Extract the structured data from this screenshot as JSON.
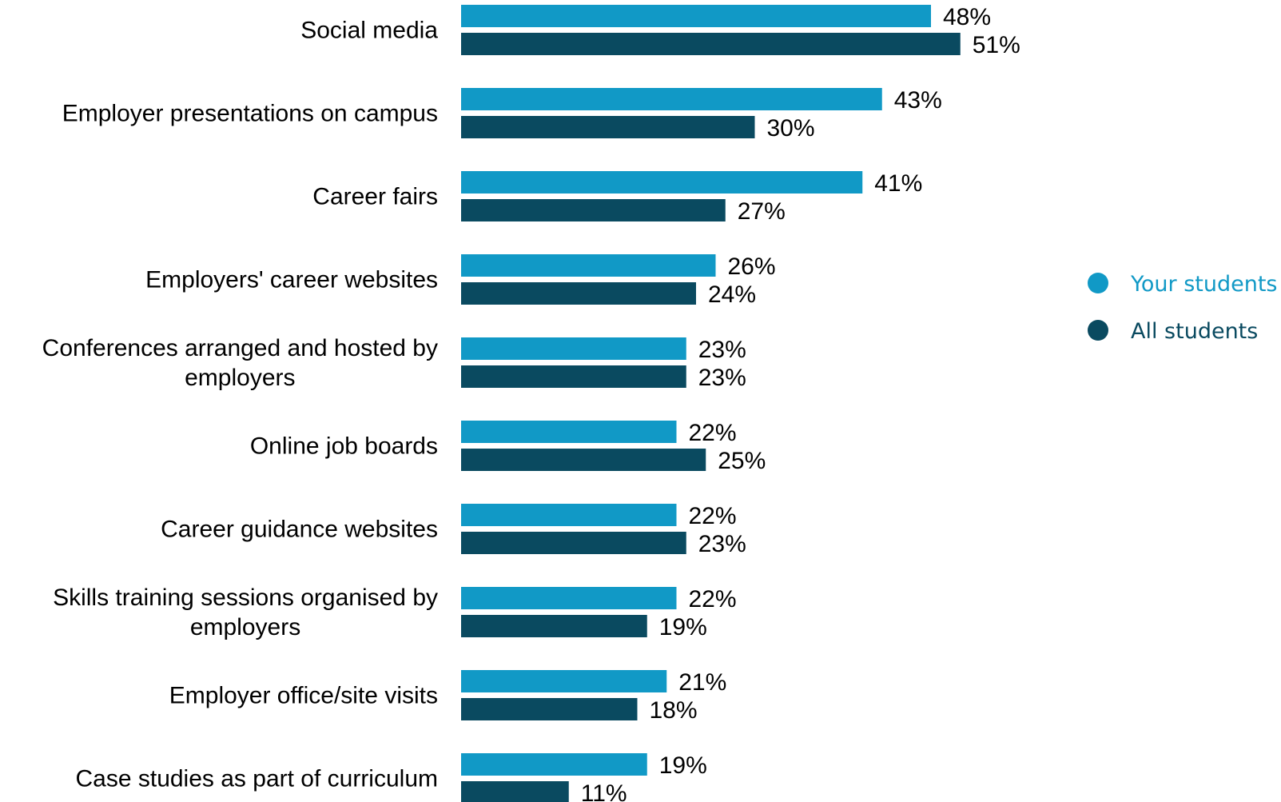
{
  "chart_data": {
    "type": "bar",
    "orientation": "horizontal",
    "categories": [
      [
        "Social media"
      ],
      [
        "Employer presentations on campus"
      ],
      [
        "Career fairs"
      ],
      [
        "Employers' career websites"
      ],
      [
        "Conferences arranged and hosted by",
        "employers"
      ],
      [
        "Online job boards"
      ],
      [
        "Career guidance websites"
      ],
      [
        "Skills training sessions organised by",
        "employers"
      ],
      [
        "Employer office/site visits"
      ],
      [
        "Case studies as part of curriculum"
      ]
    ],
    "series": [
      {
        "name": "Your students",
        "color": "#1199c6",
        "values": [
          48,
          43,
          41,
          26,
          23,
          22,
          22,
          22,
          21,
          19
        ]
      },
      {
        "name": "All students",
        "color": "#0a4a60",
        "values": [
          51,
          30,
          27,
          24,
          23,
          25,
          23,
          19,
          18,
          11
        ]
      }
    ],
    "value_suffix": "%",
    "legend_position": "right",
    "grid": false,
    "xlim": [
      0,
      100
    ]
  }
}
